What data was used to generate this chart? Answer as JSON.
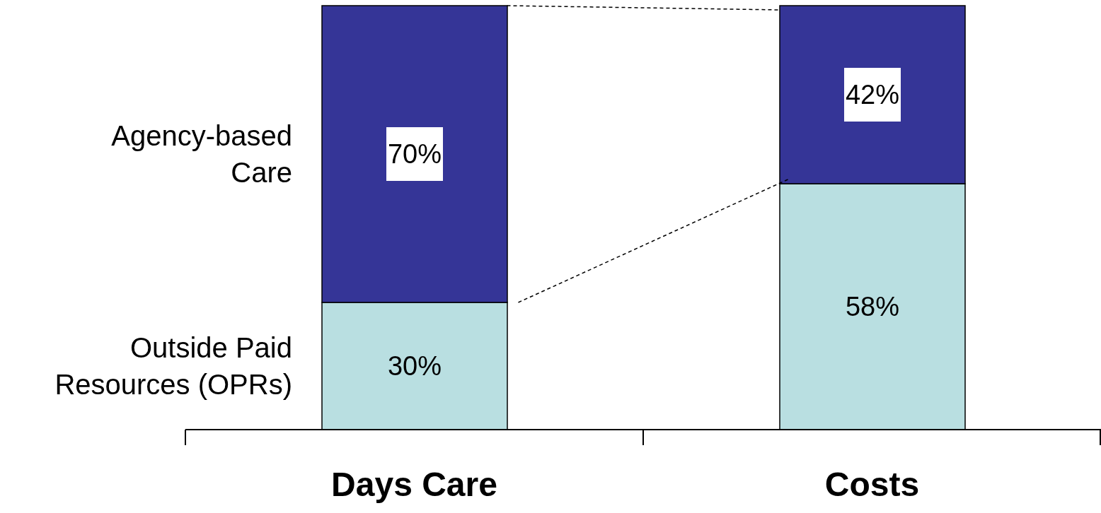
{
  "chart_data": {
    "type": "bar",
    "stacked": true,
    "categories": [
      "Days Care",
      "Costs"
    ],
    "series": [
      {
        "name": "Outside Paid Resources (OPRs)",
        "color": "#b9dfe1",
        "values": [
          30,
          58
        ],
        "value_labels": [
          "30%",
          "58%"
        ]
      },
      {
        "name": "Agency-based Care",
        "color": "#353597",
        "values": [
          70,
          42
        ],
        "value_labels": [
          "70%",
          "42%"
        ]
      }
    ]
  }
}
